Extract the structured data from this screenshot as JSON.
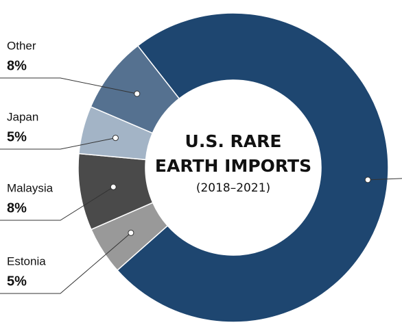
{
  "chart_data": {
    "type": "pie",
    "title": [
      "U.S. RARE",
      "EARTH IMPORTS"
    ],
    "subtitle": "(2018–2021)",
    "categories": [
      null,
      "Estonia",
      "Malaysia",
      "Japan",
      "Other"
    ],
    "values": [
      74,
      5,
      8,
      5,
      8
    ],
    "value_labels": [
      null,
      "5%",
      "8%",
      "5%",
      "8%"
    ],
    "colors": [
      "#1e4670",
      "#999999",
      "#4a4a4a",
      "#a3b4c6",
      "#557190"
    ]
  }
}
